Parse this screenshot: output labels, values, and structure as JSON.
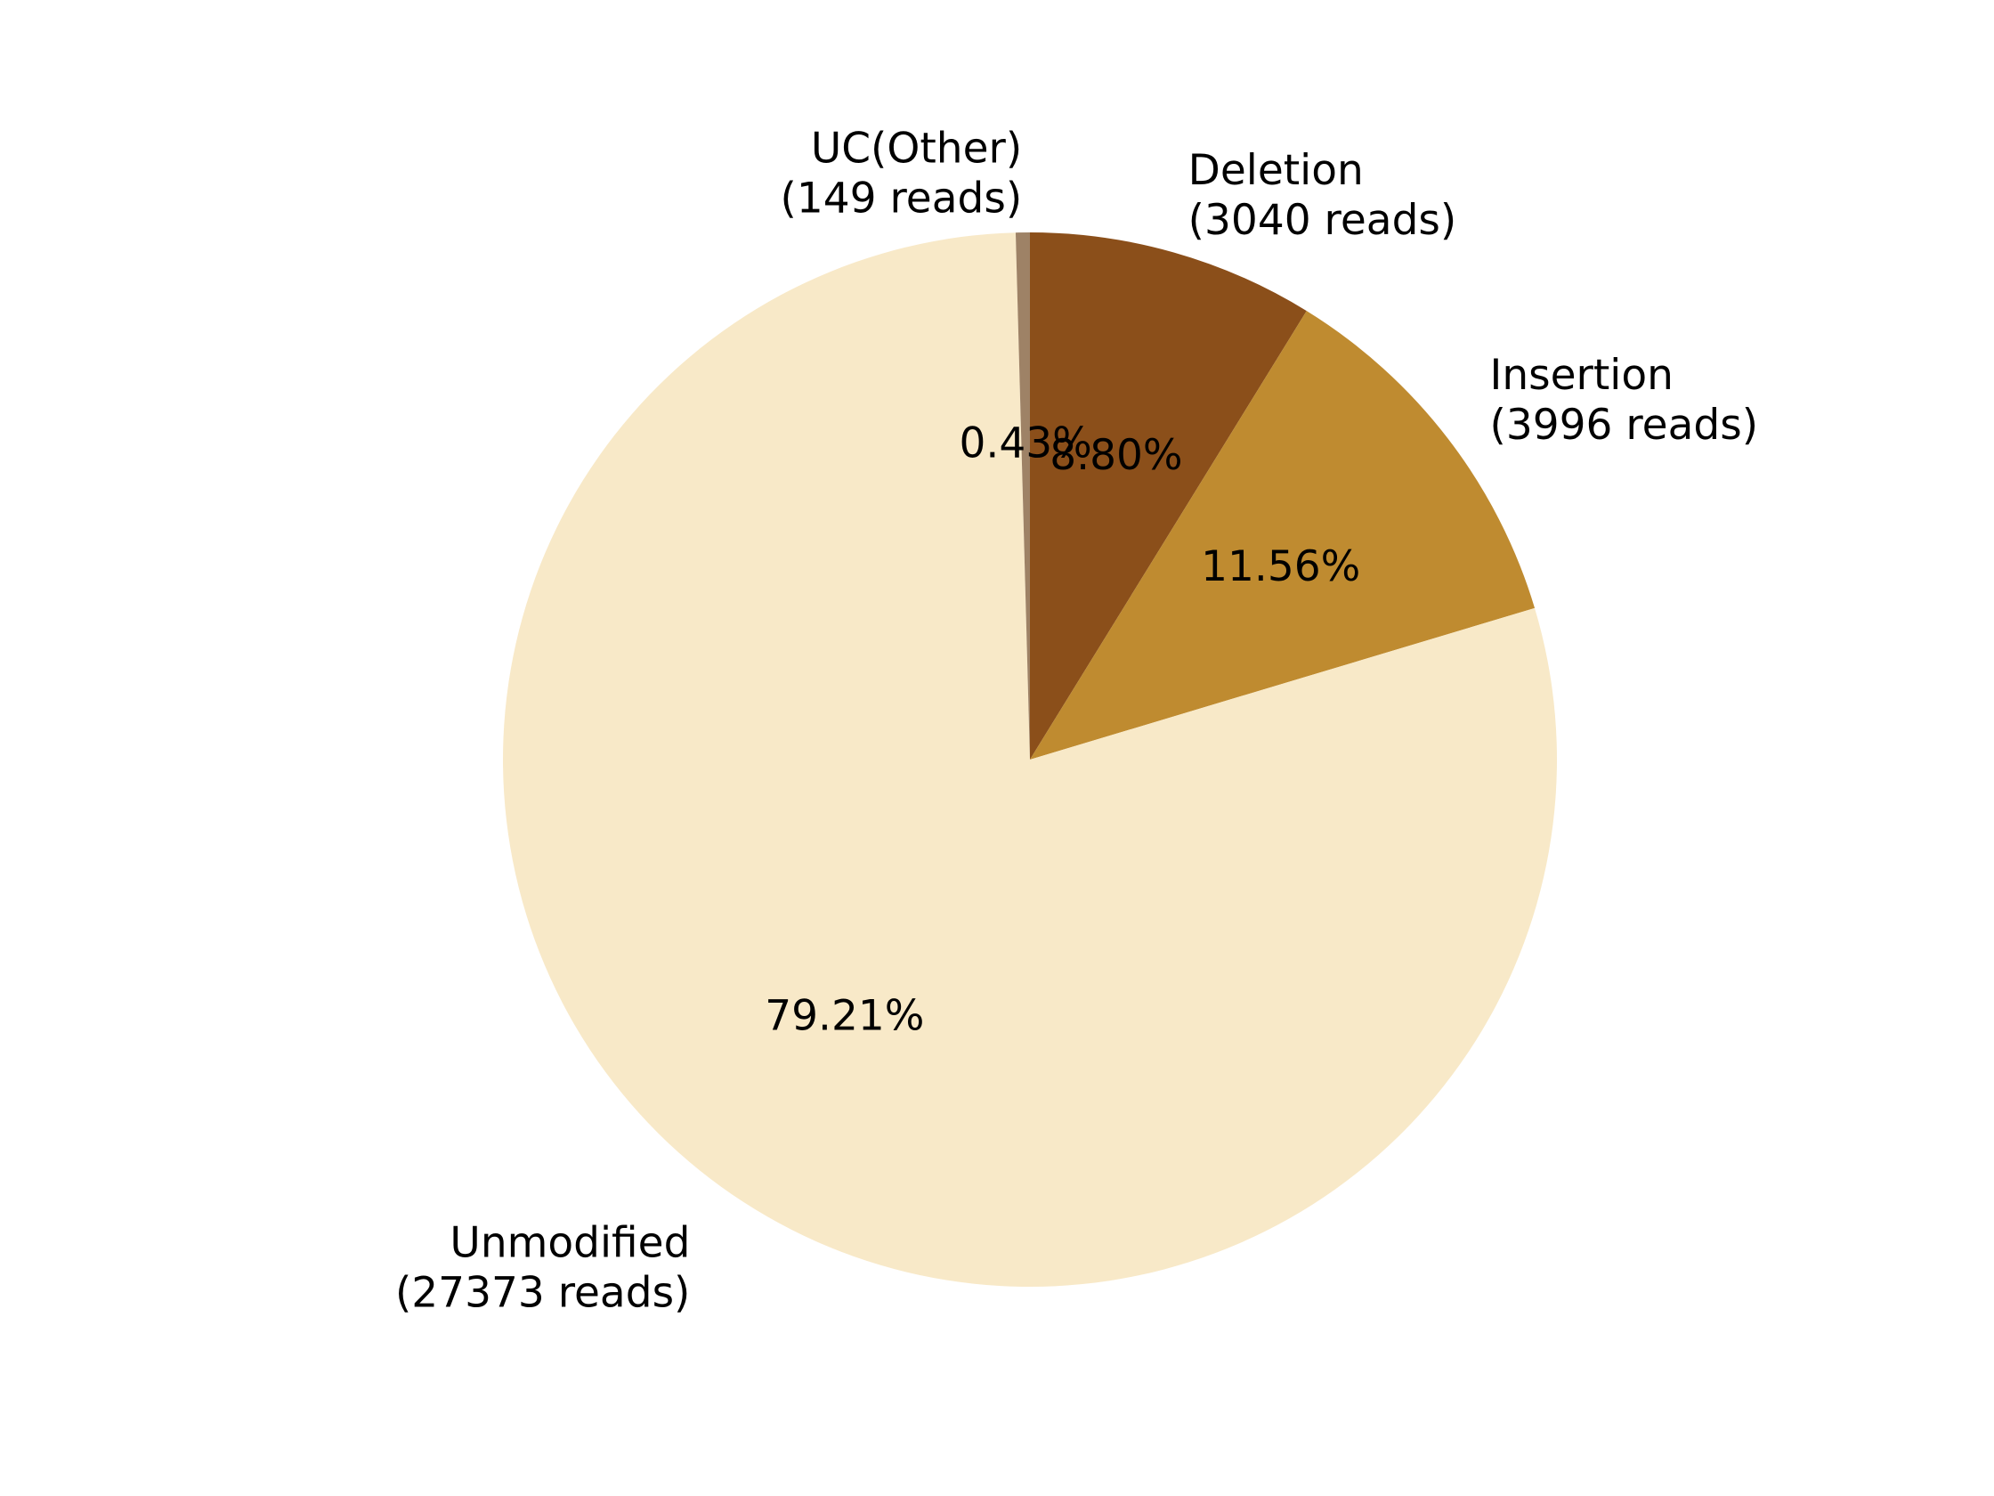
{
  "chart_data": {
    "type": "pie",
    "title": "",
    "start_angle_deg": 90,
    "direction": "clockwise",
    "slices": [
      {
        "name": "Deletion",
        "reads_label": "(3040 reads)",
        "value": 3040,
        "percent_label": "8.80%",
        "color": "#8B4F1A"
      },
      {
        "name": "Insertion",
        "reads_label": "(3996 reads)",
        "value": 3996,
        "percent_label": "11.56%",
        "color": "#BF8B30"
      },
      {
        "name": "Unmodified",
        "reads_label": "(27373 reads)",
        "value": 27373,
        "percent_label": "79.21%",
        "color": "#F8E9C8"
      },
      {
        "name": "UC(Other)",
        "reads_label": "(149 reads)",
        "value": 149,
        "percent_label": "0.43%",
        "color": "#9E8266"
      }
    ]
  }
}
